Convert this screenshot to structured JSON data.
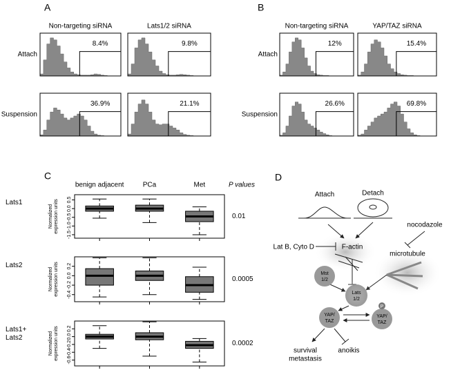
{
  "panel_a": {
    "label": "A",
    "columns": [
      "Non-targeting siRNA",
      "Lats1/2 siRNA"
    ],
    "ylim": [
      0,
      100
    ],
    "rows": [
      {
        "label": "Attach",
        "plots": [
          {
            "percent": "8.4%",
            "values": [
              5,
              40,
              80,
              95,
              90,
              75,
              55,
              35,
              20,
              10,
              5,
              3,
              2,
              2,
              2,
              3,
              5,
              4,
              2,
              1,
              0,
              0,
              0,
              0
            ]
          },
          {
            "percent": "9.8%",
            "values": [
              5,
              30,
              70,
              90,
              95,
              80,
              60,
              40,
              25,
              12,
              6,
              3,
              2,
              2,
              3,
              4,
              3,
              2,
              1,
              0,
              0,
              0,
              0,
              0
            ]
          }
        ]
      },
      {
        "label": "Suspension",
        "plots": [
          {
            "percent": "36.9%",
            "values": [
              3,
              15,
              40,
              60,
              70,
              65,
              55,
              45,
              40,
              45,
              50,
              55,
              50,
              40,
              25,
              12,
              5,
              2,
              1,
              0,
              0,
              0,
              0,
              0
            ]
          },
          {
            "percent": "21.1%",
            "values": [
              5,
              30,
              60,
              80,
              90,
              80,
              60,
              40,
              30,
              28,
              30,
              30,
              25,
              20,
              15,
              8,
              4,
              2,
              1,
              0,
              0,
              0,
              0,
              0
            ]
          }
        ]
      }
    ]
  },
  "panel_b": {
    "label": "B",
    "columns": [
      "Non-targeting siRNA",
      "YAP/TAZ siRNA"
    ],
    "ylim": [
      0,
      100
    ],
    "rows": [
      {
        "label": "Attach",
        "plots": [
          {
            "percent": "12%",
            "values": [
              2,
              10,
              30,
              60,
              85,
              95,
              90,
              70,
              45,
              25,
              12,
              6,
              3,
              2,
              1,
              1,
              0,
              0,
              0,
              0,
              0,
              0,
              0,
              0
            ]
          },
          {
            "percent": "15.4%",
            "values": [
              2,
              10,
              30,
              60,
              80,
              90,
              85,
              70,
              50,
              30,
              18,
              10,
              6,
              3,
              2,
              1,
              1,
              0,
              0,
              0,
              0,
              0,
              0,
              0
            ]
          }
        ]
      },
      {
        "label": "Suspension",
        "plots": [
          {
            "percent": "26.6%",
            "values": [
              2,
              8,
              25,
              50,
              75,
              85,
              80,
              60,
              40,
              30,
              25,
              20,
              15,
              10,
              6,
              3,
              1,
              0,
              0,
              0,
              0,
              0,
              0,
              0
            ]
          },
          {
            "percent": "69.8%",
            "values": [
              2,
              5,
              15,
              25,
              35,
              45,
              50,
              55,
              60,
              70,
              80,
              85,
              75,
              55,
              35,
              18,
              8,
              3,
              1,
              0,
              0,
              0,
              0,
              0
            ]
          }
        ]
      }
    ]
  },
  "panel_c": {
    "label": "C",
    "groups": [
      "benign adjacent",
      "PCa",
      "Met"
    ],
    "p_header": "P values",
    "y_label": [
      "Normalized",
      "expression units"
    ],
    "rows": [
      {
        "label": [
          "Lats1"
        ],
        "p": "0.01",
        "ylim": [
          -1.7,
          0.8
        ],
        "yticks": [
          {
            "value": -1.5,
            "label": "-1.5"
          },
          {
            "value": -1,
            "label": "-1.0"
          },
          -0.5,
          {
            "value": 0,
            "label": "0.0"
          },
          0.5
        ],
        "boxes": [
          {
            "whisker_low": -0.55,
            "q1": -0.15,
            "median": 0,
            "q3": 0.15,
            "whisker_high": 0.55
          },
          {
            "whisker_low": -0.8,
            "q1": -0.15,
            "median": 0,
            "q3": 0.2,
            "whisker_high": 0.55
          },
          {
            "whisker_low": -1.5,
            "q1": -0.75,
            "median": -0.45,
            "q3": -0.15,
            "whisker_high": 0.1
          }
        ]
      },
      {
        "label": [
          "Lats2"
        ],
        "p": "0.0005",
        "ylim": [
          -0.55,
          0.4
        ],
        "yticks": [
          -0.4,
          -0.2,
          {
            "value": 0,
            "label": "0.0"
          },
          0.2
        ],
        "boxes": [
          {
            "whisker_low": -0.45,
            "q1": -0.2,
            "median": 0,
            "q3": 0.15,
            "whisker_high": 0.38
          },
          {
            "whisker_low": -0.4,
            "q1": -0.1,
            "median": 0,
            "q3": 0.1,
            "whisker_high": 0.38
          },
          {
            "whisker_low": -0.5,
            "q1": -0.35,
            "median": -0.2,
            "q3": -0.02,
            "whisker_high": 0.18
          }
        ]
      },
      {
        "label": [
          "Lats1+",
          "Lats2"
        ],
        "p": "0.0002",
        "ylim": [
          -0.75,
          0.4
        ],
        "yticks": [
          -0.6,
          -0.4,
          -0.2,
          {
            "value": 0,
            "label": "0.0"
          },
          0.2
        ],
        "boxes": [
          {
            "whisker_low": -0.3,
            "q1": -0.06,
            "median": 0,
            "q3": 0.06,
            "whisker_high": 0.28
          },
          {
            "whisker_low": -0.5,
            "q1": -0.08,
            "median": 0,
            "q3": 0.1,
            "whisker_high": 0.38
          },
          {
            "whisker_low": -0.65,
            "q1": -0.3,
            "median": -0.22,
            "q3": -0.12,
            "whisker_high": -0.05
          }
        ]
      }
    ]
  },
  "panel_d": {
    "label": "D",
    "attach": "Attach",
    "detach": "Detach",
    "nocodazole": "nocodazole",
    "inhibitors": "Lat B, Cyto D",
    "f_actin": "F-actin",
    "microtubule": "microtubule",
    "mst": [
      "Mst",
      "1/2"
    ],
    "lats": [
      "Lats",
      "1/2"
    ],
    "yap": [
      "YAP/",
      "TAZ"
    ],
    "p": "P",
    "p_yap": [
      "YAP/",
      "TAZ"
    ],
    "survival": [
      "survival",
      "metastasis"
    ],
    "anoikis": "anoikis"
  }
}
